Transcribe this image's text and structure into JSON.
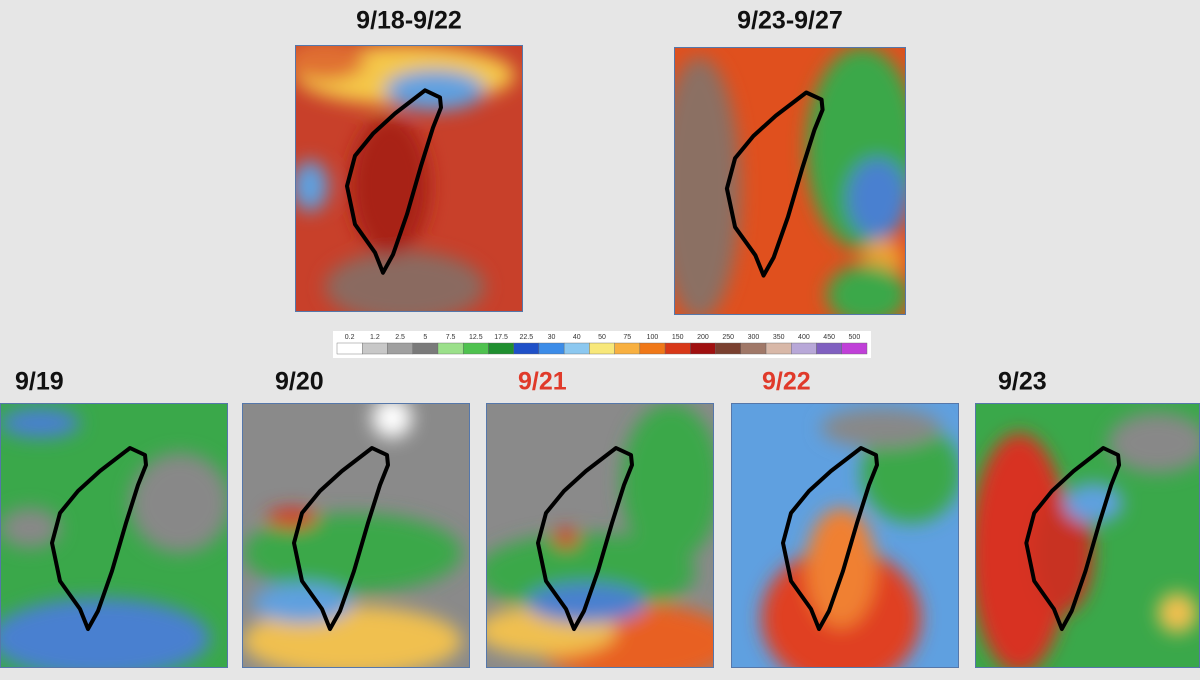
{
  "top_panels": [
    {
      "label": "9/18-9/22"
    },
    {
      "label": "9/23-9/27"
    }
  ],
  "daily_panels": [
    {
      "label": "9/19",
      "label_color": "#111111"
    },
    {
      "label": "9/20",
      "label_color": "#111111"
    },
    {
      "label": "9/21",
      "label_color": "#e03a2a"
    },
    {
      "label": "9/22",
      "label_color": "#e03a2a"
    },
    {
      "label": "9/23",
      "label_color": "#111111"
    }
  ],
  "color_scale": {
    "ticks": [
      "0.2",
      "1.2",
      "2.5",
      "5",
      "7.5",
      "12.5",
      "17.5",
      "22.5",
      "30",
      "40",
      "50",
      "75",
      "100",
      "150",
      "200",
      "250",
      "300",
      "350",
      "400",
      "450",
      "500"
    ],
    "colors": [
      "#ffffff",
      "#c8c8c8",
      "#a0a0a0",
      "#7a7a7a",
      "#9be08a",
      "#4fc24f",
      "#1f8f2f",
      "#1f50c8",
      "#3c8ce8",
      "#8cc8f0",
      "#f8e87a",
      "#f8b040",
      "#f07818",
      "#d83818",
      "#a01010",
      "#7a4030",
      "#a07868",
      "#d8b8a8",
      "#b8a8d8",
      "#8060c0",
      "#c040d8"
    ]
  }
}
